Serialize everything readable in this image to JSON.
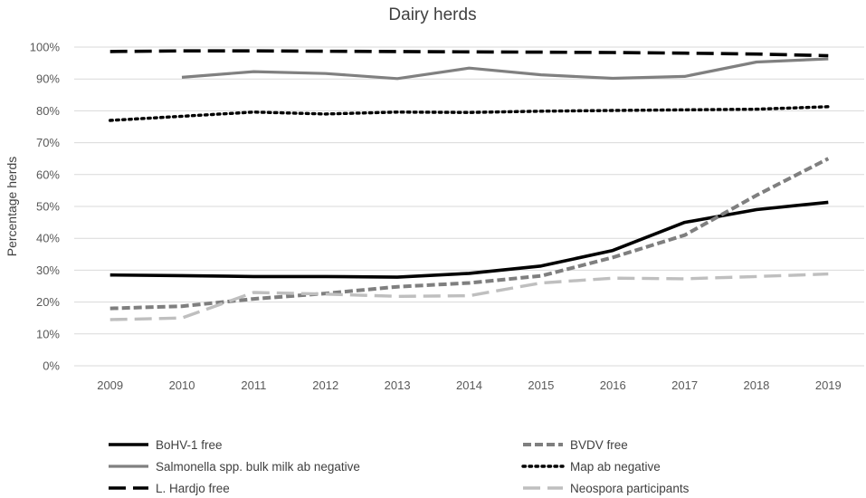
{
  "chart_data": {
    "type": "line",
    "title": "Dairy herds",
    "xlabel": "",
    "ylabel": "Percentage herds",
    "ylim": [
      0,
      100
    ],
    "yticks": [
      "0%",
      "10%",
      "20%",
      "30%",
      "40%",
      "50%",
      "60%",
      "70%",
      "80%",
      "90%",
      "100%"
    ],
    "categories": [
      "2009",
      "2010",
      "2011",
      "2012",
      "2013",
      "2014",
      "2015",
      "2016",
      "2017",
      "2018",
      "2019"
    ],
    "grid": true,
    "legend_position": "bottom",
    "series": [
      {
        "name": "BoHV-1 free",
        "values": [
          28.5,
          28.3,
          28.0,
          28.0,
          27.8,
          29.0,
          31.3,
          36.2,
          45.0,
          49.0,
          51.3
        ],
        "color": "#000000",
        "style": "solid"
      },
      {
        "name": "BVDV free",
        "values": [
          18.0,
          18.7,
          21.0,
          22.7,
          24.8,
          26.0,
          28.2,
          34.0,
          41.0,
          53.5,
          65.0
        ],
        "color": "#7f7f7f",
        "style": "dashed"
      },
      {
        "name": "Salmonella spp. bulk milk ab negative",
        "values": [
          null,
          90.5,
          92.3,
          91.7,
          90.1,
          93.4,
          91.3,
          90.2,
          90.8,
          95.3,
          96.3
        ],
        "color": "#808080",
        "style": "solid"
      },
      {
        "name": "Map ab negative",
        "values": [
          77.0,
          78.3,
          79.6,
          79.0,
          79.6,
          79.5,
          79.9,
          80.1,
          80.3,
          80.5,
          81.3
        ],
        "color": "#000000",
        "style": "dotted"
      },
      {
        "name": "L. Hardjo free",
        "values": [
          98.6,
          98.8,
          98.8,
          98.7,
          98.6,
          98.5,
          98.4,
          98.3,
          98.1,
          97.8,
          97.3
        ],
        "color": "#000000",
        "style": "longdash"
      },
      {
        "name": "Neospora participants",
        "values": [
          14.5,
          15.0,
          23.0,
          22.5,
          21.8,
          22.0,
          26.0,
          27.5,
          27.3,
          28.0,
          28.8
        ],
        "color": "#bfbfbf",
        "style": "longdash"
      }
    ]
  }
}
